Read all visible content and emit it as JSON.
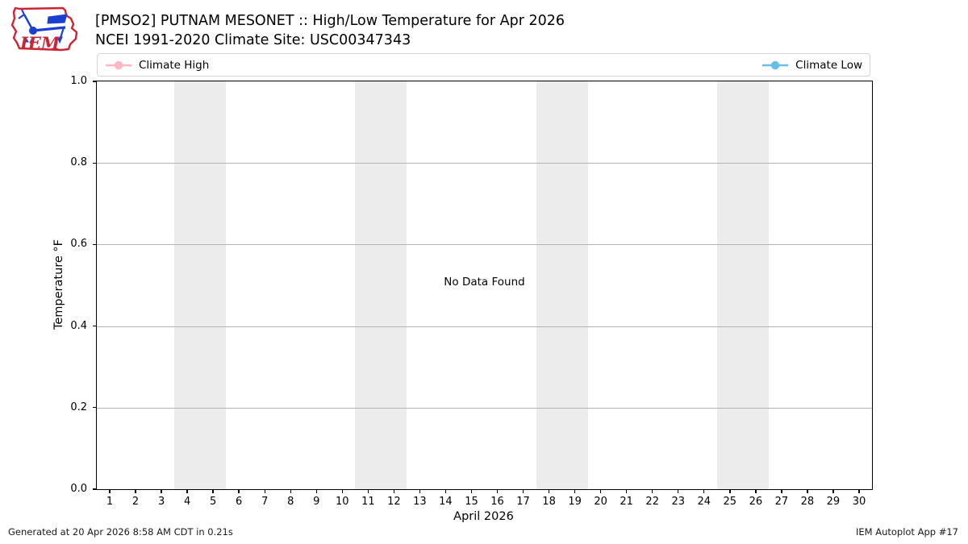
{
  "header": {
    "logo_text": "IEM",
    "title": "[PMSO2] PUTNAM MESONET :: High/Low Temperature for Apr 2026",
    "subtitle": "NCEI 1991-2020 Climate Site: USC00347343"
  },
  "legend": {
    "items": [
      {
        "label": "Climate High",
        "color": "#ffb6c4",
        "icon": "climate-high-line-marker-icon"
      },
      {
        "label": "Climate Low",
        "color": "#68bfe5",
        "icon": "climate-low-line-marker-icon"
      }
    ]
  },
  "chart_data": {
    "type": "line",
    "title": "[PMSO2] PUTNAM MESONET :: High/Low Temperature for Apr 2026",
    "subtitle": "NCEI 1991-2020 Climate Site: USC00347343",
    "xlabel": "April 2026",
    "ylabel": "Temperature °F",
    "xlim": [
      0.5,
      30.5
    ],
    "ylim": [
      0.0,
      1.0
    ],
    "xticks": [
      1,
      2,
      3,
      4,
      5,
      6,
      7,
      8,
      9,
      10,
      11,
      12,
      13,
      14,
      15,
      16,
      17,
      18,
      19,
      20,
      21,
      22,
      23,
      24,
      25,
      26,
      27,
      28,
      29,
      30
    ],
    "yticks": [
      0.0,
      0.2,
      0.4,
      0.6,
      0.8,
      1.0
    ],
    "grid": "horizontal",
    "legend_position": "top, full-width, high left / low right",
    "weekend_bands": [
      [
        3.5,
        5.5
      ],
      [
        10.5,
        12.5
      ],
      [
        17.5,
        19.5
      ],
      [
        24.5,
        26.5
      ]
    ],
    "series": [
      {
        "name": "Climate High",
        "color": "#ffb6c4",
        "values": []
      },
      {
        "name": "Climate Low",
        "color": "#68bfe5",
        "values": []
      }
    ],
    "no_data_message": "No Data Found"
  },
  "colors": {
    "weekend_band": "#ececec",
    "gridline": "#b3b3b3",
    "axis_frame": "#000000",
    "legend_border": "#d4d4d4",
    "logo_red": "#cc2433",
    "logo_blue": "#1b3fd0"
  },
  "footer": {
    "left": "Generated at 20 Apr 2026 8:58 AM CDT in 0.21s",
    "right": "IEM Autoplot App #17"
  }
}
